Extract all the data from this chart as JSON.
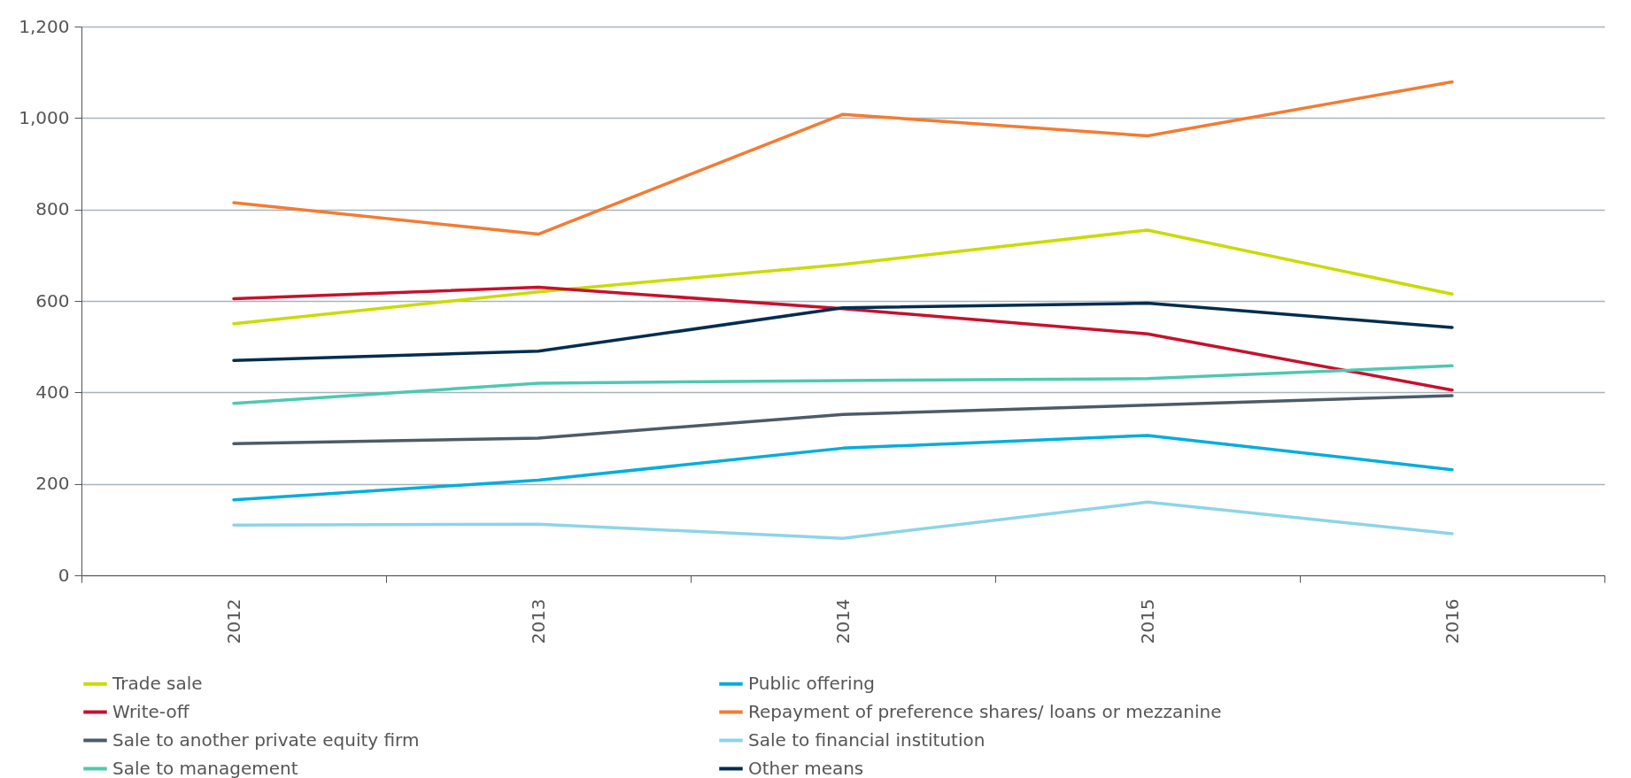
{
  "chart_data": {
    "type": "line",
    "categories": [
      "2012",
      "2013",
      "2014",
      "2015",
      "2016"
    ],
    "ylim": [
      0,
      1200
    ],
    "yticks": [
      0,
      {
        "value": 200,
        "label": "200"
      },
      {
        "value": 400,
        "label": "400"
      },
      {
        "value": 600,
        "label": "600"
      },
      {
        "value": 800,
        "label": "800"
      },
      {
        "value": 1000,
        "label": "1,000"
      },
      {
        "value": 1200,
        "label": "1,200"
      }
    ],
    "grid": "y",
    "legend": "bottom",
    "marker": "none",
    "line_style": "solid",
    "series": [
      {
        "name": "Trade sale",
        "color": "#c8dc00",
        "values": [
          550,
          620,
          680,
          755,
          615
        ]
      },
      {
        "name": "Public offering",
        "color": "#00aedb",
        "values": [
          165,
          208,
          278,
          306,
          231
        ]
      },
      {
        "name": "Write-off",
        "color": "#c8102e",
        "values": [
          605,
          630,
          583,
          528,
          405
        ]
      },
      {
        "name": "Repayment of preference shares/ loans or mezzanine",
        "color": "#f47b32",
        "values": [
          815,
          746,
          1008,
          961,
          1079
        ]
      },
      {
        "name": "Sale to another private equity firm",
        "color": "#4d5b68",
        "values": [
          288,
          300,
          352,
          372,
          393
        ]
      },
      {
        "name": "Sale to financial institution",
        "color": "#8dd4e8",
        "values": [
          110,
          112,
          81,
          160,
          91
        ]
      },
      {
        "name": "Sale to management",
        "color": "#4dc9b0",
        "values": [
          376,
          420,
          426,
          430,
          458
        ]
      },
      {
        "name": "Other means",
        "color": "#002d4f",
        "values": [
          470,
          490,
          585,
          595,
          542
        ]
      }
    ]
  }
}
